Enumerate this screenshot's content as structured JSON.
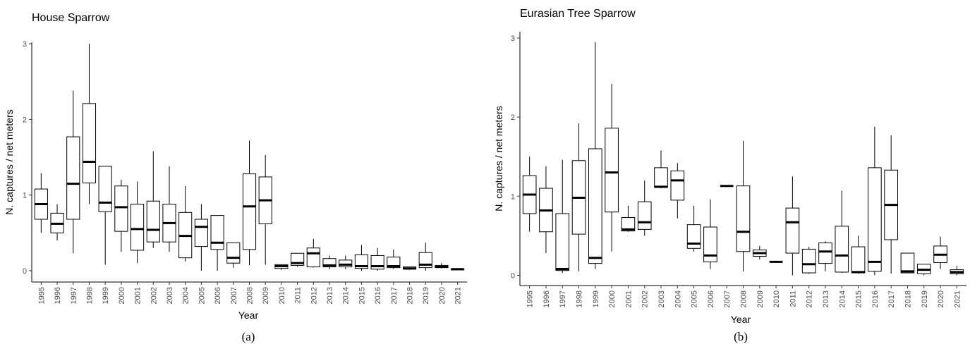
{
  "chart_data": [
    {
      "type": "box",
      "title": "House Sparrow",
      "xlabel": "Year",
      "ylabel": "N. captures / net meters",
      "panel_label": "(a)",
      "categories": [
        "1995",
        "1996",
        "1997",
        "1998",
        "1999",
        "2000",
        "2001",
        "2002",
        "2003",
        "2004",
        "2005",
        "2006",
        "2007",
        "2008",
        "2009",
        "2010",
        "2011",
        "2012",
        "2013",
        "2014",
        "2015",
        "2016",
        "2017",
        "2018",
        "2019",
        "2020",
        "2021"
      ],
      "min": [
        0.5,
        0.4,
        0.23,
        0.88,
        0.08,
        0.25,
        0.1,
        0.3,
        0.25,
        0.12,
        0.0,
        0.0,
        0.04,
        0.07,
        0.08,
        0.01,
        0.05,
        0.04,
        0.02,
        0.02,
        0.0,
        0.0,
        0.02,
        0.01,
        0.0,
        0.03,
        0.01
      ],
      "q1": [
        0.68,
        0.5,
        0.68,
        1.16,
        0.78,
        0.52,
        0.27,
        0.38,
        0.38,
        0.17,
        0.32,
        0.28,
        0.1,
        0.28,
        0.62,
        0.03,
        0.07,
        0.05,
        0.05,
        0.05,
        0.03,
        0.02,
        0.04,
        0.02,
        0.04,
        0.04,
        0.01
      ],
      "median": [
        0.88,
        0.62,
        1.15,
        1.44,
        0.9,
        0.84,
        0.55,
        0.54,
        0.63,
        0.46,
        0.58,
        0.37,
        0.17,
        0.85,
        0.93,
        0.06,
        0.1,
        0.23,
        0.07,
        0.08,
        0.06,
        0.06,
        0.06,
        0.03,
        0.08,
        0.05,
        0.02
      ],
      "q3": [
        1.08,
        0.76,
        1.77,
        2.21,
        1.38,
        1.12,
        0.88,
        0.92,
        0.88,
        0.77,
        0.68,
        0.73,
        0.37,
        1.28,
        1.24,
        0.08,
        0.23,
        0.3,
        0.16,
        0.14,
        0.21,
        0.2,
        0.18,
        0.05,
        0.24,
        0.07,
        0.02
      ],
      "max": [
        1.29,
        0.88,
        2.38,
        3.0,
        1.38,
        1.2,
        1.18,
        1.58,
        1.38,
        1.12,
        0.88,
        0.73,
        0.37,
        1.72,
        1.53,
        0.08,
        0.23,
        0.42,
        0.2,
        0.2,
        0.34,
        0.3,
        0.28,
        0.05,
        0.37,
        0.1,
        0.02
      ],
      "ylim": [
        -0.15,
        3.02
      ],
      "yticks": [
        0,
        1,
        2,
        3
      ],
      "color": "#000000"
    },
    {
      "type": "box",
      "title": "Eurasian Tree Sparrow",
      "xlabel": "Year",
      "ylabel": "N. captures / net meters",
      "panel_label": "(b)",
      "categories": [
        "1995",
        "1996",
        "1997",
        "1998",
        "1999",
        "2000",
        "2001",
        "2002",
        "2003",
        "2004",
        "2005",
        "2006",
        "2007",
        "2008",
        "2009",
        "2010",
        "2011",
        "2012",
        "2013",
        "2014",
        "2015",
        "2016",
        "2017",
        "2018",
        "2019",
        "2020",
        "2021"
      ],
      "min": [
        0.55,
        0.28,
        0.03,
        0.05,
        0.08,
        0.3,
        0.55,
        0.5,
        1.1,
        0.72,
        0.3,
        0.08,
        1.13,
        0.05,
        0.2,
        0.17,
        0.0,
        0.02,
        0.05,
        0.03,
        0.02,
        0.0,
        0.02,
        0.03,
        0.0,
        0.08,
        0.0
      ],
      "q1": [
        0.78,
        0.55,
        0.06,
        0.52,
        0.15,
        0.8,
        0.56,
        0.58,
        1.11,
        0.95,
        0.34,
        0.17,
        1.13,
        0.3,
        0.24,
        0.17,
        0.28,
        0.03,
        0.15,
        0.04,
        0.03,
        0.05,
        0.45,
        0.03,
        0.02,
        0.16,
        0.02
      ],
      "median": [
        1.02,
        0.82,
        0.08,
        0.98,
        0.22,
        1.3,
        0.58,
        0.67,
        1.12,
        1.2,
        0.4,
        0.25,
        1.13,
        0.55,
        0.28,
        0.17,
        0.67,
        0.14,
        0.3,
        0.25,
        0.04,
        0.17,
        0.89,
        0.05,
        0.07,
        0.26,
        0.04
      ],
      "q3": [
        1.26,
        1.1,
        0.78,
        1.45,
        1.6,
        1.86,
        0.73,
        0.93,
        1.36,
        1.32,
        0.64,
        0.61,
        1.13,
        1.13,
        0.32,
        0.17,
        0.85,
        0.33,
        0.41,
        0.62,
        0.36,
        1.36,
        1.33,
        0.28,
        0.14,
        0.37,
        0.07
      ],
      "max": [
        1.5,
        1.38,
        1.46,
        1.92,
        2.95,
        2.42,
        0.88,
        1.2,
        1.58,
        1.42,
        0.88,
        0.96,
        1.13,
        1.7,
        0.37,
        0.17,
        1.25,
        0.36,
        0.43,
        1.07,
        0.5,
        1.88,
        1.77,
        0.28,
        0.14,
        0.49,
        0.12
      ],
      "ylim": [
        -0.13,
        3.08
      ],
      "yticks": [
        0,
        1,
        2,
        3
      ],
      "color": "#000000"
    }
  ]
}
